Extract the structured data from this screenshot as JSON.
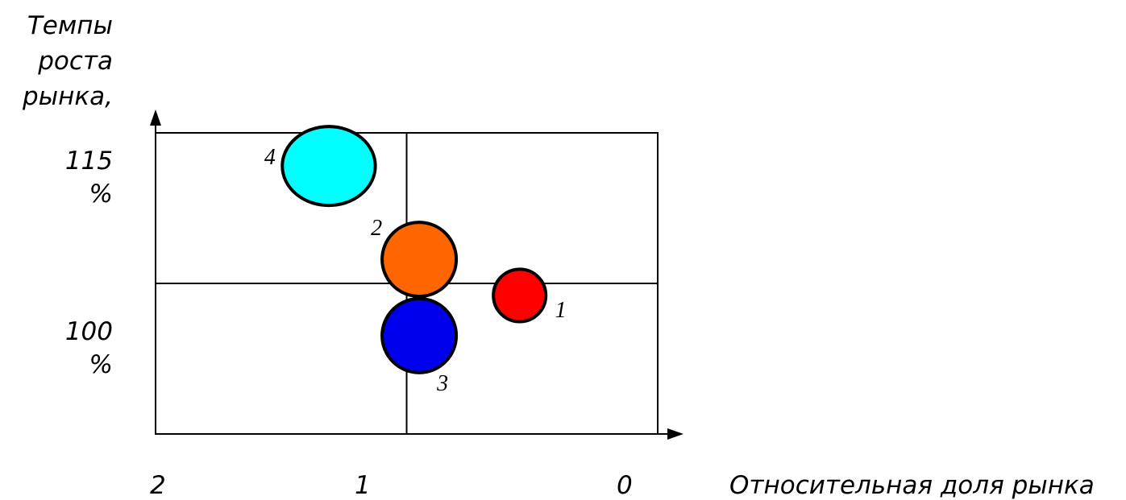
{
  "chart_data": {
    "type": "bubble",
    "title": "",
    "ylabel_lines": [
      "Темпы",
      "роста",
      "рынка,"
    ],
    "xlabel": "Относительная доля рынка",
    "y_ticks": [
      {
        "value": 115,
        "lines": [
          "115",
          "%"
        ]
      },
      {
        "value": 100,
        "lines": [
          "100",
          "%"
        ]
      }
    ],
    "x_ticks": [
      {
        "value": 2,
        "label": "2"
      },
      {
        "value": 1,
        "label": "1"
      },
      {
        "value": 0,
        "label": "0"
      }
    ],
    "xlim": [
      2,
      0
    ],
    "ylim": [
      92.5,
      122.5
    ],
    "x_reversed": true,
    "quadrant_dividers": {
      "x": 1.0,
      "y": 107.5
    },
    "grid": false,
    "points": [
      {
        "label": "1",
        "x": 0.55,
        "y": 106.3,
        "size": 0.5,
        "color": "#ff0000"
      },
      {
        "label": "2",
        "x": 0.95,
        "y": 109.9,
        "size": 1.0,
        "color": "#ff6600"
      },
      {
        "label": "3",
        "x": 0.95,
        "y": 102.3,
        "size": 1.0,
        "color": "#0000ee"
      },
      {
        "label": "4",
        "x": 1.31,
        "y": 119.2,
        "size": 1.4,
        "color": "#00ffff"
      }
    ]
  }
}
